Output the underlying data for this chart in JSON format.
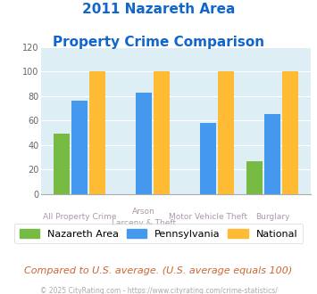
{
  "title_line1": "2011 Nazareth Area",
  "title_line2": "Property Crime Comparison",
  "nazareth": [
    49,
    0,
    0,
    27
  ],
  "pennsylvania": [
    76,
    83,
    58,
    65
  ],
  "national": [
    100,
    100,
    100,
    100
  ],
  "color_nazareth": "#77bb44",
  "color_pennsylvania": "#4499ee",
  "color_national": "#ffbb33",
  "ylim": [
    0,
    120
  ],
  "yticks": [
    0,
    20,
    40,
    60,
    80,
    100,
    120
  ],
  "bg_color": "#ddeef4",
  "title_color": "#1166cc",
  "axis_label_color": "#aa99aa",
  "xlabels_top": [
    "All Property Crime",
    "Arson",
    "Motor Vehicle Theft",
    "Burglary"
  ],
  "xlabels_bot": [
    "",
    "Larceny & Theft",
    "",
    ""
  ],
  "footer_text": "Compared to U.S. average. (U.S. average equals 100)",
  "footer_color": "#cc6633",
  "credit_text": "© 2025 CityRating.com - https://www.cityrating.com/crime-statistics/",
  "credit_color": "#aaaaaa"
}
